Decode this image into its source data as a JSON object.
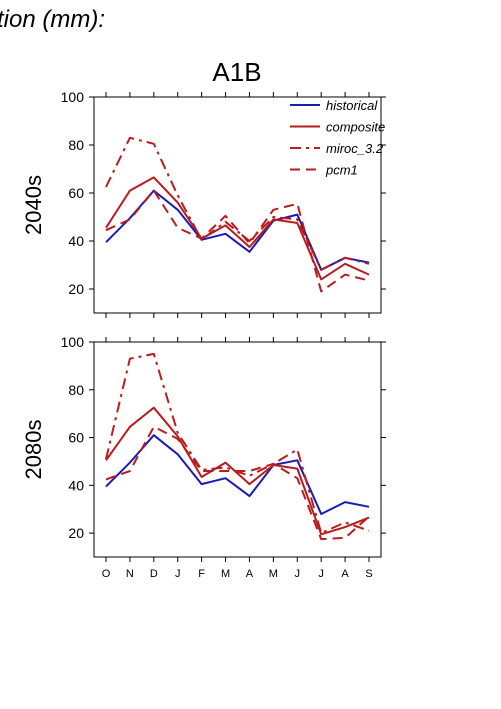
{
  "header": {
    "figure_title": "tion (mm):"
  },
  "colors": {
    "historical": "#1a1ab8",
    "scenario": "#b81c1c"
  },
  "chart_data": {
    "type": "line",
    "title": "A1B",
    "months": [
      "O",
      "N",
      "D",
      "J",
      "F",
      "M",
      "A",
      "M",
      "J",
      "J",
      "A",
      "S"
    ],
    "yticks": [
      20,
      40,
      60,
      80,
      100
    ],
    "ylim": [
      10,
      100
    ],
    "legend": {
      "placement": "top-right",
      "entries": [
        {
          "name": "historical",
          "color": "#1a1ab8",
          "style": "solid"
        },
        {
          "name": "composite",
          "color": "#b81c1c",
          "style": "solid"
        },
        {
          "name": "miroc_3.2",
          "color": "#b81c1c",
          "style": "dashdot"
        },
        {
          "name": "pcm1",
          "color": "#b81c1c",
          "style": "dashed"
        }
      ]
    },
    "panels": [
      {
        "row_label": "2040s",
        "series": [
          {
            "name": "historical",
            "style": "solid",
            "color": "#1a1ab8",
            "values": [
              39.5,
              49.5,
              61,
              53,
              40.5,
              43,
              35.5,
              48.5,
              51,
              28,
              33,
              31
            ]
          },
          {
            "name": "composite",
            "style": "solid",
            "color": "#b81c1c",
            "values": [
              45.5,
              61,
              66.5,
              56,
              41,
              46.5,
              37.5,
              49,
              47.5,
              24,
              30.5,
              26
            ]
          },
          {
            "name": "miroc_3.2",
            "style": "dashdot",
            "color": "#b81c1c",
            "values": [
              62.5,
              83,
              80.5,
              59,
              40.5,
              48,
              40,
              50,
              49,
              28,
              33,
              30.5
            ]
          },
          {
            "name": "pcm1",
            "style": "dashed",
            "color": "#b81c1c",
            "values": [
              44.5,
              49,
              61,
              45.5,
              41,
              50.5,
              39,
              53,
              55.5,
              19,
              26,
              23.5
            ]
          }
        ]
      },
      {
        "row_label": "2080s",
        "series": [
          {
            "name": "historical",
            "style": "solid",
            "color": "#1a1ab8",
            "values": [
              39.5,
              49.5,
              61,
              53,
              40.5,
              43,
              35.5,
              48.5,
              50.5,
              28,
              33,
              31
            ]
          },
          {
            "name": "composite",
            "style": "solid",
            "color": "#b81c1c",
            "values": [
              50.5,
              64.5,
              72.5,
              60.5,
              43.5,
              49.5,
              40.5,
              48.5,
              47,
              19.5,
              22.5,
              26.5
            ]
          },
          {
            "name": "miroc_3.2",
            "style": "dashdot",
            "color": "#b81c1c",
            "values": [
              51,
              93,
              95,
              62,
              46.5,
              47.5,
              44,
              49,
              55,
              20,
              24.5,
              21
            ]
          },
          {
            "name": "pcm1",
            "style": "dashed",
            "color": "#b81c1c",
            "values": [
              42.5,
              46,
              64.5,
              59.5,
              46,
              46,
              46,
              49,
              43,
              17.5,
              18,
              27
            ]
          }
        ]
      }
    ]
  }
}
